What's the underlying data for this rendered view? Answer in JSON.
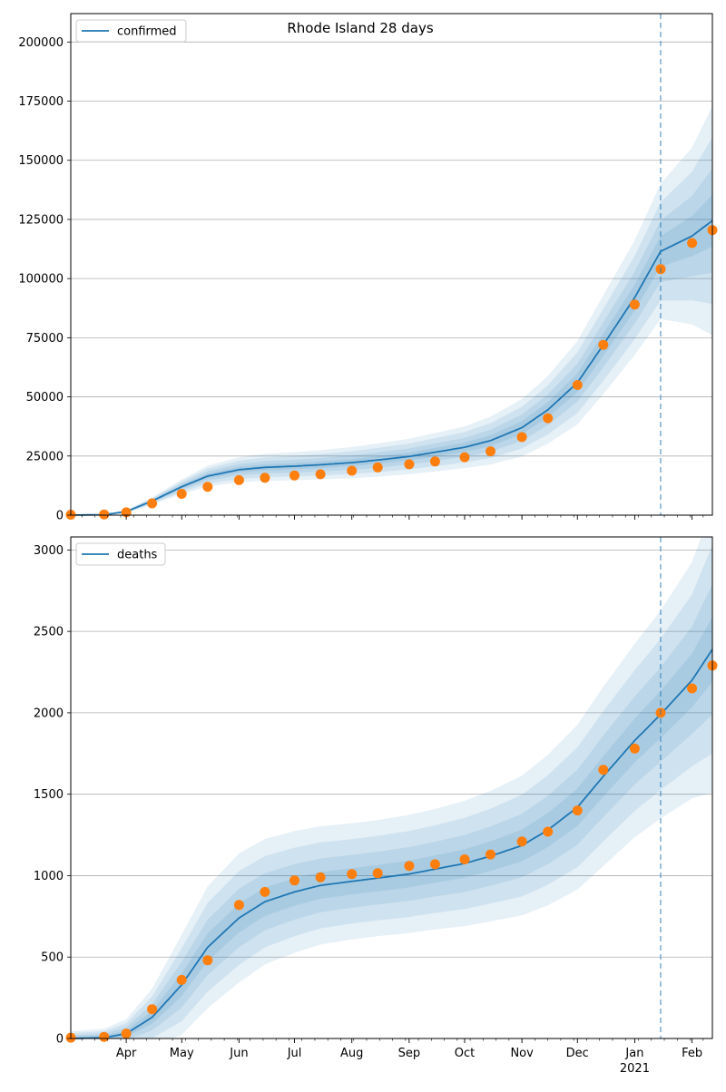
{
  "title": "Rhode Island 28 days",
  "colors": {
    "model_line": "#1f77b4",
    "observed": "#ff7f0e",
    "band": "#1f77b4",
    "grid": "#b0b0b0",
    "forecast_line": "#1f77b4"
  },
  "chart_data": [
    {
      "type": "line",
      "title": "Rhode Island 28 days",
      "legend": "top-left",
      "legend_label": "confirmed",
      "xlim": [
        "2020-03-02",
        "2021-02-12"
      ],
      "ylim": [
        0,
        212000
      ],
      "y_ticks": [
        0,
        25000,
        50000,
        75000,
        100000,
        125000,
        150000,
        175000,
        200000
      ],
      "x_tick_labels": [],
      "forecast_start": "2021-01-15",
      "grid": "horizontal",
      "model": {
        "x": [
          "2020-03-02",
          "2020-03-20",
          "2020-04-01",
          "2020-04-15",
          "2020-05-01",
          "2020-05-15",
          "2020-06-01",
          "2020-06-15",
          "2020-07-01",
          "2020-07-15",
          "2020-08-01",
          "2020-08-15",
          "2020-09-01",
          "2020-09-15",
          "2020-10-01",
          "2020-10-15",
          "2020-11-01",
          "2020-11-15",
          "2020-12-01",
          "2020-12-15",
          "2021-01-01",
          "2021-01-15",
          "2021-02-01",
          "2021-02-12"
        ],
        "y": [
          0,
          200,
          1500,
          6000,
          12000,
          16500,
          19200,
          20200,
          20700,
          21300,
          22200,
          23300,
          24800,
          26600,
          28700,
          31500,
          37000,
          44500,
          56000,
          72000,
          92000,
          111500,
          118000,
          124500
        ],
        "band_sigma": [
          0,
          60,
          300,
          700,
          1400,
          2000,
          2400,
          2600,
          2700,
          2800,
          3000,
          3200,
          3400,
          3700,
          4000,
          4600,
          5500,
          6500,
          8000,
          9500,
          11000,
          13000,
          17000,
          22000
        ]
      },
      "observed": {
        "x": [
          "2020-03-02",
          "2020-03-20",
          "2020-04-01",
          "2020-04-15",
          "2020-05-01",
          "2020-05-15",
          "2020-06-01",
          "2020-06-15",
          "2020-07-01",
          "2020-07-15",
          "2020-08-01",
          "2020-08-15",
          "2020-09-01",
          "2020-09-15",
          "2020-10-01",
          "2020-10-15",
          "2020-11-01",
          "2020-11-15",
          "2020-12-01",
          "2020-12-15",
          "2021-01-01",
          "2021-01-15",
          "2021-02-01",
          "2021-02-12"
        ],
        "y": [
          200,
          300,
          1200,
          5000,
          9000,
          12000,
          14800,
          15800,
          16800,
          17300,
          18800,
          20200,
          21500,
          22700,
          24500,
          27000,
          33000,
          41000,
          55000,
          72000,
          89000,
          104000,
          115000,
          120500
        ]
      }
    },
    {
      "type": "line",
      "legend": "top-left",
      "legend_label": "deaths",
      "xlim": [
        "2020-03-02",
        "2021-02-12"
      ],
      "ylim": [
        0,
        3080
      ],
      "y_ticks": [
        0,
        500,
        1000,
        1500,
        2000,
        2500,
        3000
      ],
      "x_tick_labels": [
        "Apr",
        "May",
        "Jun",
        "Jul",
        "Aug",
        "Sep",
        "Oct",
        "Nov",
        "Dec",
        "Jan",
        "Feb"
      ],
      "x_year_label": "2021",
      "forecast_start": "2021-01-15",
      "grid": "horizontal",
      "model": {
        "x": [
          "2020-03-02",
          "2020-03-20",
          "2020-04-01",
          "2020-04-15",
          "2020-05-01",
          "2020-05-15",
          "2020-06-01",
          "2020-06-15",
          "2020-07-01",
          "2020-07-15",
          "2020-08-01",
          "2020-08-15",
          "2020-09-01",
          "2020-09-15",
          "2020-10-01",
          "2020-10-15",
          "2020-11-01",
          "2020-11-15",
          "2020-12-01",
          "2020-12-15",
          "2021-01-01",
          "2021-01-15",
          "2021-02-01",
          "2021-02-12"
        ],
        "y": [
          0,
          5,
          30,
          130,
          330,
          560,
          740,
          840,
          900,
          940,
          965,
          985,
          1010,
          1040,
          1075,
          1120,
          1185,
          1280,
          1420,
          1610,
          1830,
          1990,
          2200,
          2390
        ],
        "band_sigma": [
          20,
          25,
          40,
          80,
          140,
          170,
          180,
          175,
          170,
          165,
          162,
          162,
          165,
          168,
          175,
          182,
          195,
          210,
          230,
          250,
          270,
          290,
          330,
          400
        ]
      },
      "observed": {
        "x": [
          "2020-03-02",
          "2020-03-20",
          "2020-04-01",
          "2020-04-15",
          "2020-05-01",
          "2020-05-15",
          "2020-06-01",
          "2020-06-15",
          "2020-07-01",
          "2020-07-15",
          "2020-08-01",
          "2020-08-15",
          "2020-09-01",
          "2020-09-15",
          "2020-10-01",
          "2020-10-15",
          "2020-11-01",
          "2020-11-15",
          "2020-12-01",
          "2020-12-15",
          "2021-01-01",
          "2021-01-15",
          "2021-02-01",
          "2021-02-12"
        ],
        "y": [
          5,
          10,
          30,
          180,
          360,
          480,
          820,
          900,
          970,
          990,
          1010,
          1015,
          1060,
          1070,
          1100,
          1130,
          1210,
          1270,
          1400,
          1650,
          1780,
          2000,
          2150,
          2290
        ]
      }
    }
  ]
}
